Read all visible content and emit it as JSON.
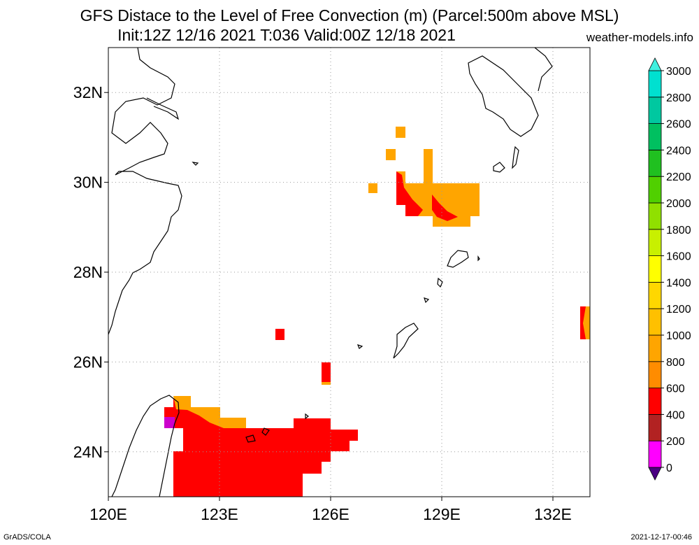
{
  "title": {
    "line1": "GFS Distace to the Level of Free Convection (m) (Parcel:500m above MSL)",
    "line2": "Init:12Z 12/16 2021 T:036 Valid:00Z 12/18 2021"
  },
  "site": "weather-models.info",
  "footer": {
    "left": "GrADS/COLA",
    "right": "2021-12-17-00:46"
  },
  "map": {
    "lon_range": [
      120,
      133
    ],
    "lat_range": [
      23,
      33
    ],
    "lon_ticks": [
      {
        "v": 120,
        "label": "120E"
      },
      {
        "v": 123,
        "label": "123E"
      },
      {
        "v": 126,
        "label": "126E"
      },
      {
        "v": 129,
        "label": "129E"
      },
      {
        "v": 132,
        "label": "132E"
      }
    ],
    "lat_ticks": [
      {
        "v": 24,
        "label": "24N"
      },
      {
        "v": 26,
        "label": "26N"
      },
      {
        "v": 28,
        "label": "28N"
      },
      {
        "v": 30,
        "label": "30N"
      },
      {
        "v": 32,
        "label": "32N"
      }
    ],
    "grid": true
  },
  "colorbar": {
    "levels": [
      0,
      200,
      400,
      600,
      800,
      1000,
      1200,
      1400,
      1600,
      1800,
      2000,
      2200,
      2400,
      2600,
      2800,
      3000
    ],
    "colors": [
      "#4b0082",
      "#ff00ff",
      "#b22222",
      "#ff0000",
      "#ff8c00",
      "#ffa500",
      "#ffc000",
      "#ffd700",
      "#ffff00",
      "#c8f000",
      "#90e000",
      "#50d000",
      "#20c020",
      "#00c060",
      "#00c8a0",
      "#00e0d0",
      "#40f0e0"
    ]
  },
  "legend_colors": {
    "red": "#ff0000",
    "orange": "#ffa500",
    "dark_orange": "#ff8c00",
    "magenta": "#ff00ff",
    "purple": "#8a2be2"
  }
}
